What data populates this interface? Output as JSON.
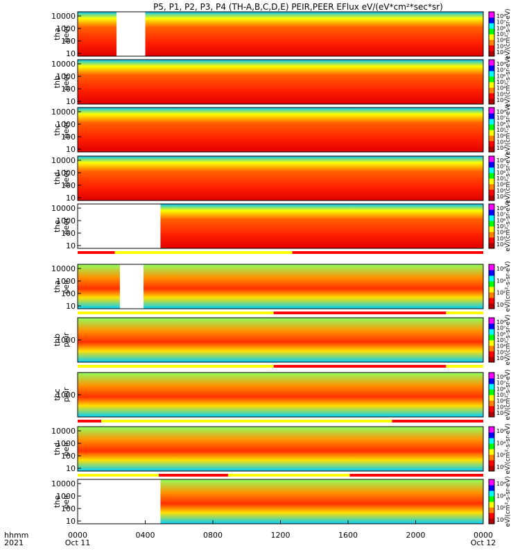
{
  "chart_data": {
    "type": "heatmap",
    "title": "P5, P1, P2, P3, P4 (TH-A,B,C,D,E) PEIR,PEER EFlux eV/(eV*cm²*sec*sr)",
    "x_label_line1": "hhmm",
    "x_label_line2": "2021",
    "x_ticks": [
      {
        "time": "0000",
        "date": "Oct 11"
      },
      {
        "time": "0400",
        "date": ""
      },
      {
        "time": "0800",
        "date": ""
      },
      {
        "time": "1200",
        "date": ""
      },
      {
        "time": "1600",
        "date": ""
      },
      {
        "time": "2000",
        "date": ""
      },
      {
        "time": "0000",
        "date": "Oct 12"
      }
    ],
    "colorbar_units_electron": "eV/(cm²-s-sr-eV)",
    "colorbar_units_ion": "eV/(cm²-s-sr-eV)",
    "panels": [
      {
        "probe": "tha",
        "species": "peer",
        "line1": "tha",
        "line2": "peer",
        "yticks": [
          "10000",
          "1000",
          "100",
          "10"
        ],
        "cbar_ticks": [
          "10⁸",
          "10⁷",
          "10⁶",
          "10⁵",
          "10⁴",
          "10³",
          "10²"
        ],
        "gap_hours": [
          [
            2.3,
            4.0
          ]
        ],
        "yscale": "log"
      },
      {
        "probe": "thb",
        "species": "peer",
        "line1": "thb",
        "line2": "peer",
        "yticks": [
          "10000",
          "1000",
          "100",
          "10"
        ],
        "cbar_ticks": [
          "10⁸",
          "10⁷",
          "10⁶",
          "10⁵",
          "10⁴",
          "10³",
          "10²"
        ],
        "gap_hours": [],
        "yscale": "log"
      },
      {
        "probe": "thc",
        "species": "peer",
        "line1": "thc",
        "line2": "peer",
        "yticks": [
          "10000",
          "1000",
          "100",
          "10"
        ],
        "cbar_ticks": [
          "10⁸",
          "10⁷",
          "10⁶",
          "10⁵",
          "10⁴",
          "10³",
          "10²"
        ],
        "gap_hours": [],
        "yscale": "log"
      },
      {
        "probe": "thd",
        "species": "peer",
        "line1": "thd",
        "line2": "peer",
        "yticks": [
          "10000",
          "1000",
          "100",
          "10"
        ],
        "cbar_ticks": [
          "10⁸",
          "10⁷",
          "10⁶",
          "10⁵",
          "10⁴",
          "10³",
          "10²"
        ],
        "gap_hours": [],
        "yscale": "log"
      },
      {
        "probe": "the",
        "species": "peer",
        "line1": "the",
        "line2": "peer",
        "yticks": [
          "10000",
          "1000",
          "100",
          "10"
        ],
        "cbar_ticks": [
          "10⁸",
          "10⁷",
          "10⁶",
          "10⁵",
          "10⁴",
          "10³",
          "10²"
        ],
        "gap_hours": [
          [
            0.0,
            4.9
          ]
        ],
        "yscale": "log"
      },
      {
        "probe": "tha",
        "species": "peir",
        "line1": "tha",
        "line2": "peir",
        "yticks": [
          "10000",
          "1000",
          "100",
          "10"
        ],
        "cbar_ticks": [
          "10⁶",
          "10⁴",
          "10²",
          "10⁰"
        ],
        "gap_hours": [
          [
            2.5,
            3.9
          ]
        ],
        "yscale": "log"
      },
      {
        "probe": "thb",
        "species": "peir",
        "line1": "thb",
        "line2": "peir",
        "yticks": [
          "1000"
        ],
        "cbar_ticks": [
          "10⁸",
          "10⁷",
          "10⁶",
          "10⁵",
          "10⁴",
          "10³",
          "10²"
        ],
        "gap_hours": [],
        "yscale": "log"
      },
      {
        "probe": "thc",
        "species": "peir",
        "line1": "thc",
        "line2": "peir",
        "yticks": [
          "1000"
        ],
        "cbar_ticks": [
          "10⁸",
          "10⁷",
          "10⁶",
          "10⁵",
          "10⁴",
          "10³",
          "10²"
        ],
        "gap_hours": [],
        "yscale": "log"
      },
      {
        "probe": "thd",
        "species": "peir",
        "line1": "thd",
        "line2": "peir",
        "yticks": [
          "10000",
          "1000",
          "100",
          "10"
        ],
        "cbar_ticks": [
          "10⁶",
          "10⁴",
          "10²",
          "10⁰"
        ],
        "gap_hours": [],
        "yscale": "log"
      },
      {
        "probe": "the",
        "species": "peir",
        "line1": "the",
        "line2": "peir",
        "yticks": [
          "10000",
          "1000",
          "100",
          "10"
        ],
        "cbar_ticks": [
          "10⁶",
          "10⁴",
          "10²",
          "10⁰"
        ],
        "gap_hours": [
          [
            0.0,
            4.9
          ]
        ],
        "yscale": "log"
      }
    ],
    "mode_bars": [
      {
        "after_panel": 4,
        "segments": [
          {
            "from": 0,
            "to": 2.2,
            "color": "#ff0000"
          },
          {
            "from": 2.2,
            "to": 12.7,
            "color": "#ffff00"
          },
          {
            "from": 12.7,
            "to": 24,
            "color": "#ff0000"
          }
        ]
      },
      {
        "after_panel": 5,
        "segments": [
          {
            "from": 0,
            "to": 11.6,
            "color": "#ffff00"
          },
          {
            "from": 11.6,
            "to": 21.8,
            "color": "#ff0000"
          },
          {
            "from": 21.8,
            "to": 24,
            "color": "#ffff00"
          }
        ]
      },
      {
        "after_panel": 6,
        "segments": [
          {
            "from": 0,
            "to": 11.6,
            "color": "#ffff00"
          },
          {
            "from": 11.6,
            "to": 21.8,
            "color": "#ff0000"
          },
          {
            "from": 21.8,
            "to": 24,
            "color": "#ffff00"
          }
        ]
      },
      {
        "after_panel": 7,
        "segments": [
          {
            "from": 0,
            "to": 1.4,
            "color": "#ff0000"
          },
          {
            "from": 1.4,
            "to": 18.6,
            "color": "#ffff00"
          },
          {
            "from": 18.6,
            "to": 24,
            "color": "#ff0000"
          }
        ]
      },
      {
        "after_panel": 8,
        "segments": [
          {
            "from": 0,
            "to": 4.8,
            "color": "#ffff00"
          },
          {
            "from": 4.8,
            "to": 8.9,
            "color": "#ff0000"
          },
          {
            "from": 8.9,
            "to": 16.1,
            "color": "#ffff00"
          },
          {
            "from": 16.1,
            "to": 24,
            "color": "#ff0000"
          }
        ]
      }
    ],
    "x_range_hours": [
      0,
      24
    ]
  }
}
